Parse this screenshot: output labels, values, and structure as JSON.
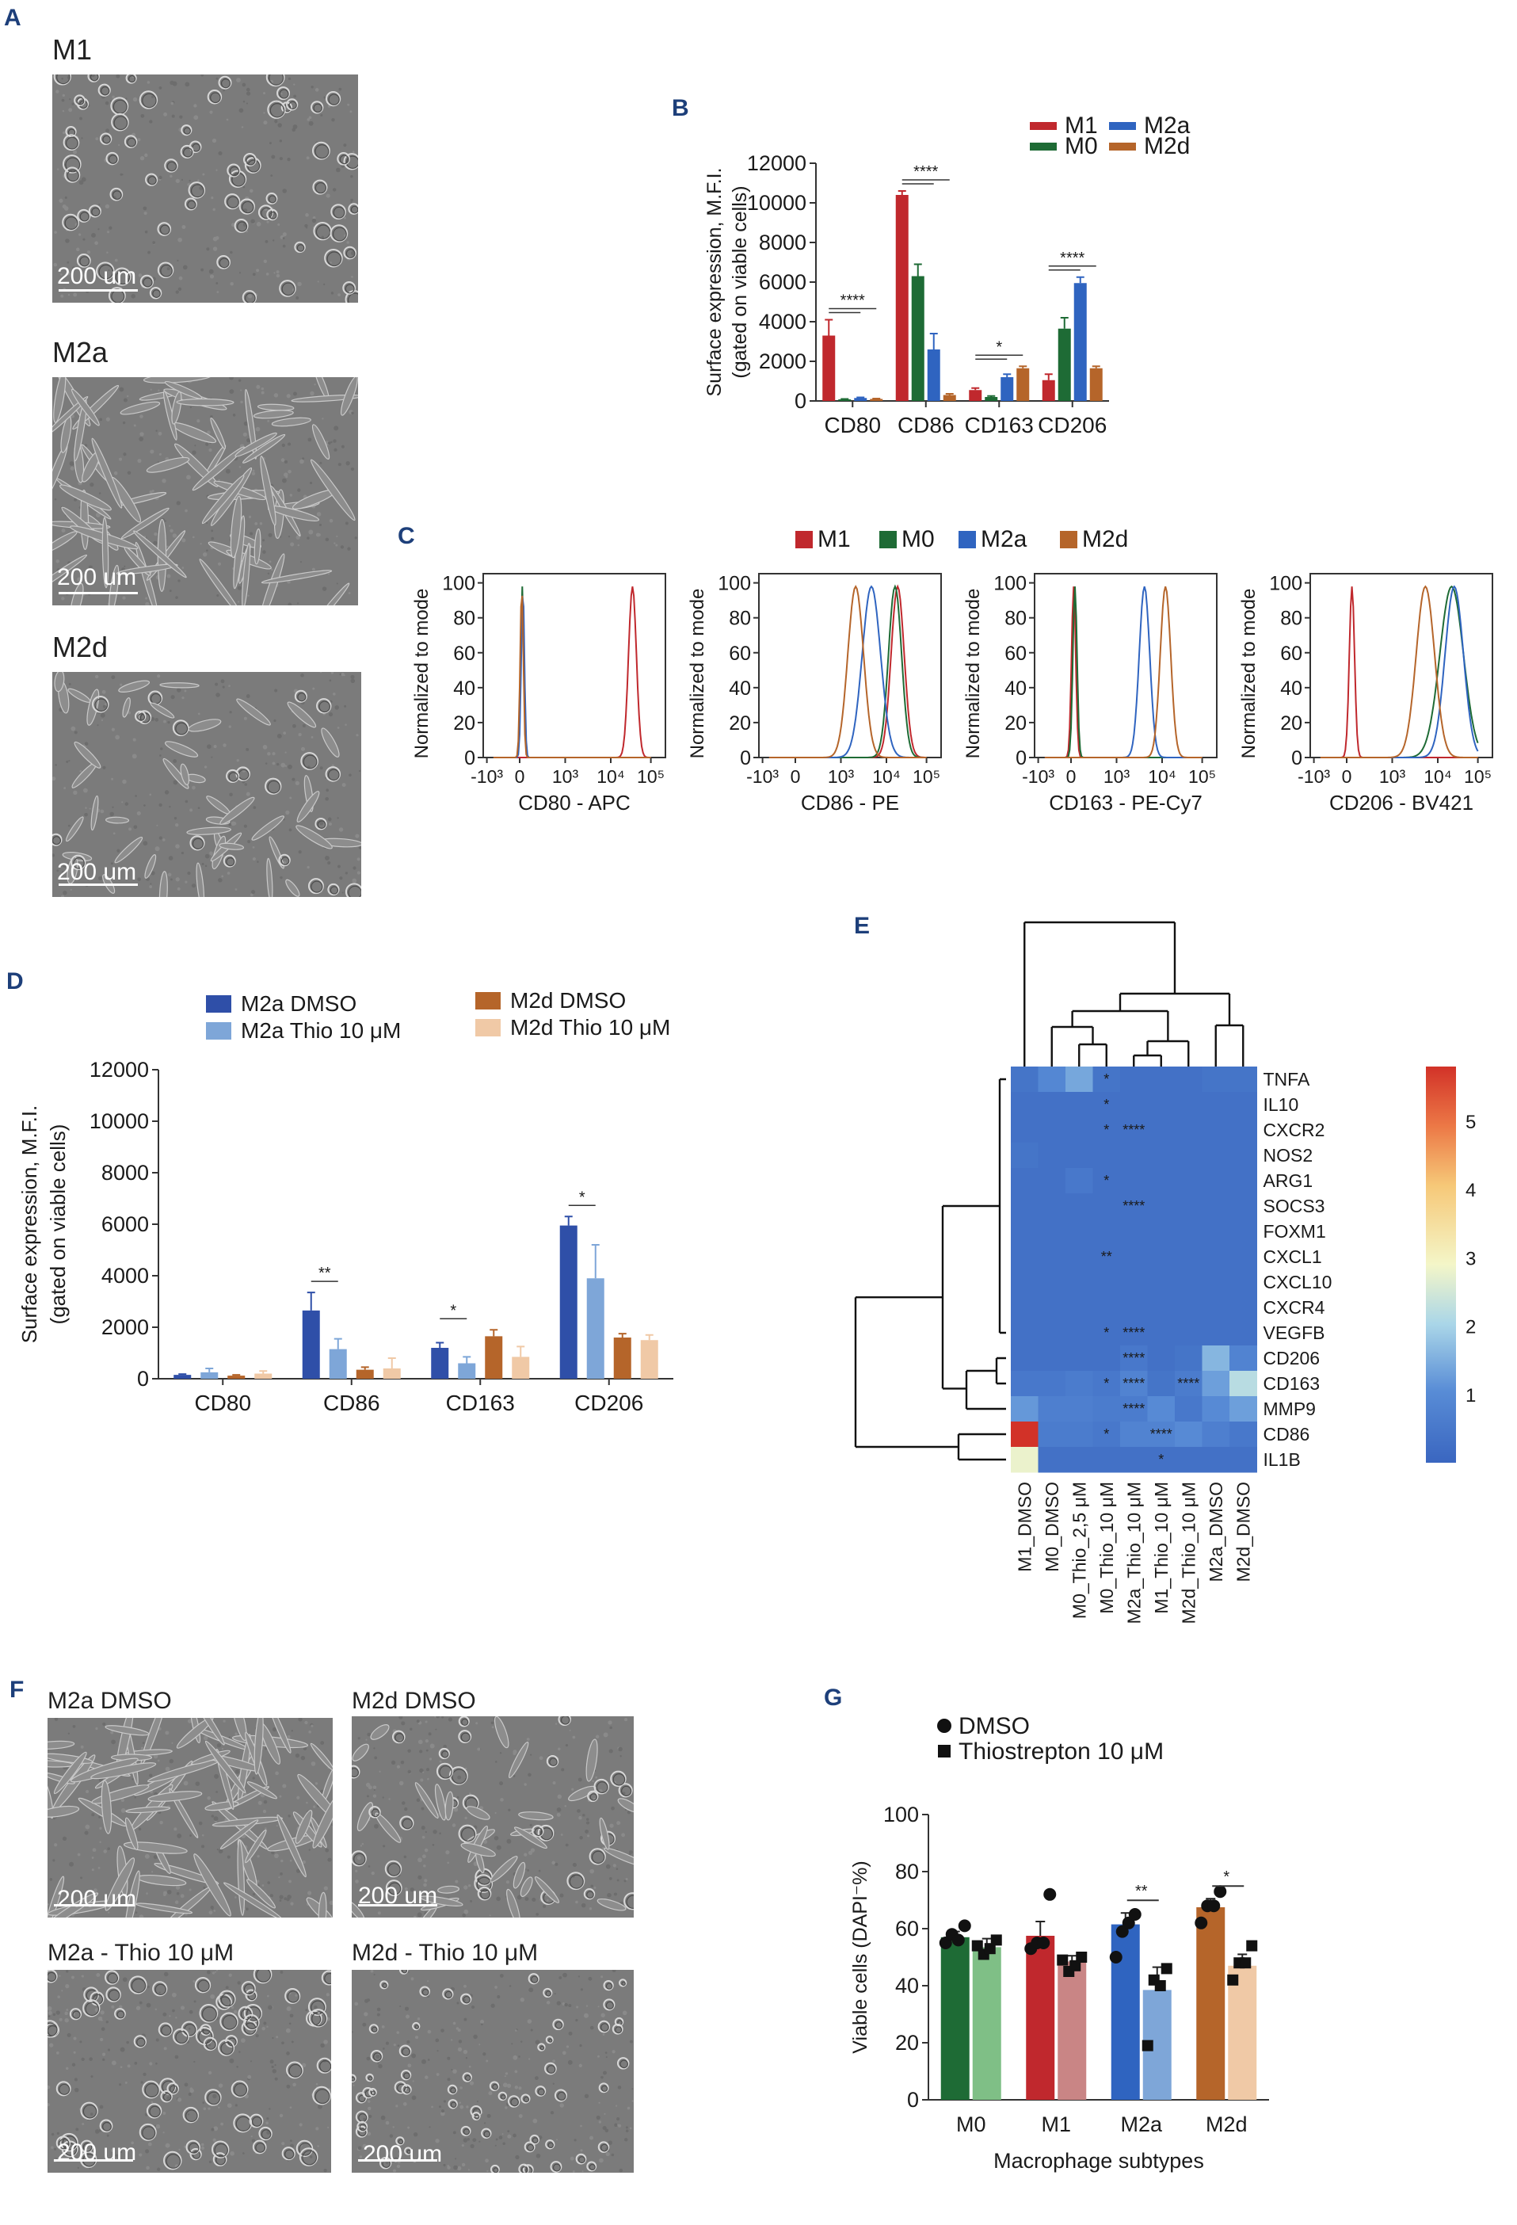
{
  "panels": {
    "A": "A",
    "B": "B",
    "C": "C",
    "D": "D",
    "E": "E",
    "F": "F",
    "G": "G"
  },
  "panelA": {
    "images": [
      {
        "title": "M1",
        "scale": "200 um",
        "kind": "round"
      },
      {
        "title": "M2a",
        "scale": "200 um",
        "kind": "elongated"
      },
      {
        "title": "M2d",
        "scale": "200 um",
        "kind": "mixed"
      }
    ]
  },
  "panelF": {
    "images": [
      {
        "title": "M2a DMSO",
        "scale": "200 um",
        "kind": "elongated"
      },
      {
        "title": "M2d DMSO",
        "scale": "200 um",
        "kind": "mixed"
      },
      {
        "title": "M2a - Thio 10 μM",
        "scale": "200 um",
        "kind": "round"
      },
      {
        "title": "M2d - Thio 10 μM",
        "scale": "200 um",
        "kind": "roundsmall"
      }
    ]
  },
  "colors": {
    "M1": "#c0282d",
    "M0": "#1e6b35",
    "M2a": "#2f64c0",
    "M2d": "#b5652a",
    "M2a_light": "#7ea6d8",
    "M2d_light": "#f0c9a6",
    "M0_light": "#7fbf86",
    "M1_light": "#c98585"
  },
  "chart_data": [
    {
      "id": "B",
      "type": "bar",
      "title": "",
      "ylabel": "Surface expression, M.F.I.",
      "ylabel2": "(gated on viable cells)",
      "ylim": [
        0,
        12000
      ],
      "yticks": [
        "0",
        "2000",
        "4000",
        "6000",
        "8000",
        "10000",
        "12000"
      ],
      "categories": [
        "CD80",
        "CD86",
        "CD163",
        "CD206"
      ],
      "legend": [
        "M1",
        "M0",
        "M2a",
        "M2d"
      ],
      "series": [
        {
          "name": "M1",
          "color": "#c0282d",
          "values": [
            3300,
            10400,
            550,
            1050
          ],
          "err": [
            800,
            200,
            100,
            300
          ]
        },
        {
          "name": "M0",
          "color": "#1e6b35",
          "values": [
            80,
            6300,
            200,
            3650
          ],
          "err": [
            20,
            600,
            50,
            550
          ]
        },
        {
          "name": "M2a",
          "color": "#2f64c0",
          "values": [
            150,
            2600,
            1200,
            5950
          ],
          "err": [
            30,
            800,
            150,
            300
          ]
        },
        {
          "name": "M2d",
          "color": "#b5652a",
          "values": [
            100,
            300,
            1650,
            1650
          ],
          "err": [
            20,
            60,
            100,
            100
          ]
        }
      ],
      "significance": [
        "****",
        "****",
        "*",
        "****"
      ]
    },
    {
      "id": "C",
      "type": "histogram",
      "legend": [
        "M1",
        "M0",
        "M2a",
        "M2d"
      ],
      "ylabel": "Normalized to mode",
      "yticks": [
        "0",
        "20",
        "40",
        "60",
        "80",
        "100"
      ],
      "xticks": [
        "-10³",
        "0",
        "10³",
        "10⁴",
        "10⁵"
      ],
      "subplots": [
        {
          "xlabel": "CD80 - APC",
          "peaks": {
            "M1": [
              4.3,
              0.15
            ],
            "M0": [
              0.1,
              0.06
            ],
            "M2a": [
              0.12,
              0.06
            ],
            "M2d": [
              0.08,
              0.06
            ]
          }
        },
        {
          "xlabel": "CD86 - PE",
          "peaks": {
            "M1": [
              3.9,
              0.25
            ],
            "M0": [
              3.8,
              0.25
            ],
            "M2a": [
              2.9,
              0.35
            ],
            "M2d": [
              2.3,
              0.3
            ]
          }
        },
        {
          "xlabel": "CD163 - PE-Cy7",
          "peaks": {
            "M1": [
              0.1,
              0.08
            ],
            "M0": [
              0.15,
              0.08
            ],
            "M2a": [
              2.8,
              0.2
            ],
            "M2d": [
              3.6,
              0.2
            ]
          }
        },
        {
          "xlabel": "CD206 - BV421",
          "peaks": {
            "M1": [
              0.2,
              0.1
            ],
            "M0": [
              4.0,
              0.45
            ],
            "M2a": [
              4.1,
              0.35
            ],
            "M2d": [
              3.0,
              0.35
            ]
          }
        }
      ]
    },
    {
      "id": "D",
      "type": "bar",
      "ylabel": "Surface expression, M.F.I.",
      "ylabel2": "(gated on viable cells)",
      "ylim": [
        0,
        12000
      ],
      "yticks": [
        "0",
        "2000",
        "4000",
        "6000",
        "8000",
        "10000",
        "12000"
      ],
      "categories": [
        "CD80",
        "CD86",
        "CD163",
        "CD206"
      ],
      "legend": [
        "M2a DMSO",
        "M2a Thio 10 μM",
        "M2d DMSO",
        "M2d Thio 10 μM"
      ],
      "series": [
        {
          "name": "M2a DMSO",
          "color": "#2f4fa8",
          "values": [
            150,
            2650,
            1200,
            5950
          ],
          "err": [
            30,
            700,
            200,
            350
          ]
        },
        {
          "name": "M2a Thio 10 μM",
          "color": "#7ea6d8",
          "values": [
            250,
            1150,
            600,
            3900
          ],
          "err": [
            150,
            400,
            250,
            1300
          ]
        },
        {
          "name": "M2d DMSO",
          "color": "#b5652a",
          "values": [
            120,
            350,
            1650,
            1600
          ],
          "err": [
            30,
            100,
            250,
            150
          ]
        },
        {
          "name": "M2d Thio 10 μM",
          "color": "#f0c9a6",
          "values": [
            200,
            400,
            850,
            1500
          ],
          "err": [
            100,
            400,
            400,
            200
          ]
        }
      ],
      "significance": [
        "",
        "**",
        "*",
        "*"
      ]
    },
    {
      "id": "E",
      "type": "heatmap",
      "rows": [
        "TNFA",
        "IL10",
        "CXCR2",
        "NOS2",
        "ARG1",
        "SOCS3",
        "FOXM1",
        "CXCL1",
        "CXCL10",
        "CXCR4",
        "VEGFB",
        "CD206",
        "CD163",
        "MMP9",
        "CD86",
        "IL1B"
      ],
      "cols": [
        "M1_DMSO",
        "M0_DMSO",
        "M0_Thio_2,5 μM",
        "M0_Thio_10 μM",
        "M2a_Thio_10 μM",
        "M1_Thio_10 μM",
        "M2d_Thio_10 μM",
        "M2a_DMSO",
        "M2d_DMSO"
      ],
      "colorbar_ticks": [
        "1",
        "2",
        "3",
        "4",
        "5"
      ],
      "values": [
        [
          0.4,
          0.9,
          1.4,
          0.4,
          0.3,
          0.3,
          0.3,
          0.4,
          0.4
        ],
        [
          0.3,
          0.3,
          0.3,
          0.3,
          0.3,
          0.3,
          0.3,
          0.3,
          0.3
        ],
        [
          0.3,
          0.3,
          0.3,
          0.3,
          0.3,
          0.3,
          0.3,
          0.3,
          0.3
        ],
        [
          0.4,
          0.3,
          0.3,
          0.3,
          0.3,
          0.3,
          0.3,
          0.3,
          0.3
        ],
        [
          0.3,
          0.3,
          0.5,
          0.3,
          0.3,
          0.3,
          0.3,
          0.3,
          0.3
        ],
        [
          0.3,
          0.3,
          0.3,
          0.3,
          0.3,
          0.3,
          0.3,
          0.3,
          0.3
        ],
        [
          0.3,
          0.3,
          0.3,
          0.3,
          0.3,
          0.3,
          0.3,
          0.3,
          0.3
        ],
        [
          0.3,
          0.3,
          0.3,
          0.3,
          0.3,
          0.3,
          0.3,
          0.3,
          0.3
        ],
        [
          0.3,
          0.3,
          0.3,
          0.3,
          0.3,
          0.3,
          0.3,
          0.3,
          0.3
        ],
        [
          0.3,
          0.3,
          0.3,
          0.3,
          0.3,
          0.3,
          0.3,
          0.3,
          0.3
        ],
        [
          0.3,
          0.3,
          0.3,
          0.3,
          0.3,
          0.3,
          0.3,
          0.3,
          0.3
        ],
        [
          0.3,
          0.3,
          0.3,
          0.3,
          0.5,
          0.3,
          0.4,
          1.6,
          0.8
        ],
        [
          0.5,
          0.5,
          0.6,
          0.5,
          0.8,
          0.4,
          0.6,
          1.3,
          2.2
        ],
        [
          1.2,
          0.7,
          0.7,
          0.6,
          0.6,
          1.0,
          0.5,
          1.0,
          1.3
        ],
        [
          5.8,
          0.6,
          0.6,
          0.5,
          0.8,
          0.8,
          1.0,
          0.7,
          0.5
        ],
        [
          2.8,
          0.3,
          0.3,
          0.3,
          0.3,
          0.3,
          0.3,
          0.3,
          0.3
        ]
      ],
      "stars": [
        [
          0,
          3,
          "*"
        ],
        [
          1,
          3,
          "*"
        ],
        [
          2,
          3,
          "*"
        ],
        [
          2,
          4,
          "****"
        ],
        [
          4,
          3,
          "*"
        ],
        [
          5,
          4,
          "****"
        ],
        [
          7,
          3,
          "**"
        ],
        [
          10,
          3,
          "*"
        ],
        [
          10,
          4,
          "****"
        ],
        [
          11,
          4,
          "****"
        ],
        [
          12,
          3,
          "*"
        ],
        [
          12,
          4,
          "****"
        ],
        [
          12,
          6,
          "****"
        ],
        [
          13,
          4,
          "****"
        ],
        [
          14,
          3,
          "*"
        ],
        [
          14,
          5,
          "****"
        ],
        [
          15,
          5,
          "*"
        ]
      ]
    },
    {
      "id": "G",
      "type": "bar",
      "ylabel": "Viable cells (DAPI⁻%)",
      "xlabel": "Macrophage subtypes",
      "ylim": [
        0,
        100
      ],
      "yticks": [
        "0",
        "20",
        "40",
        "60",
        "80",
        "100"
      ],
      "categories": [
        "M0",
        "M1",
        "M2a",
        "M2d"
      ],
      "legend": [
        "DMSO",
        "Thiostrepton 10 μM"
      ],
      "series": [
        {
          "name": "DMSO",
          "colors": [
            "#1e6b35",
            "#c0282d",
            "#2f64c0",
            "#b5652a"
          ],
          "values": [
            57,
            57.5,
            61.5,
            67.5
          ],
          "err": [
            2,
            5,
            4,
            3
          ],
          "points": [
            [
              55,
              58,
              56,
              61
            ],
            [
              53,
              55,
              55,
              72
            ],
            [
              50,
              59,
              62,
              65
            ],
            [
              62,
              68,
              68,
              73
            ]
          ]
        },
        {
          "name": "Thiostrepton 10 μM",
          "colors": [
            "#7fbf86",
            "#c98585",
            "#7ea6d8",
            "#f0c9a6"
          ],
          "values": [
            53.5,
            48.5,
            38.5,
            47
          ],
          "err": [
            3,
            2,
            8,
            4
          ],
          "points": [
            [
              54,
              51,
              53,
              56
            ],
            [
              49,
              45,
              47,
              50
            ],
            [
              19,
              42,
              40,
              46
            ],
            [
              42,
              48,
              48,
              54
            ]
          ]
        }
      ],
      "significance": [
        "",
        "",
        "**",
        "*"
      ]
    }
  ]
}
